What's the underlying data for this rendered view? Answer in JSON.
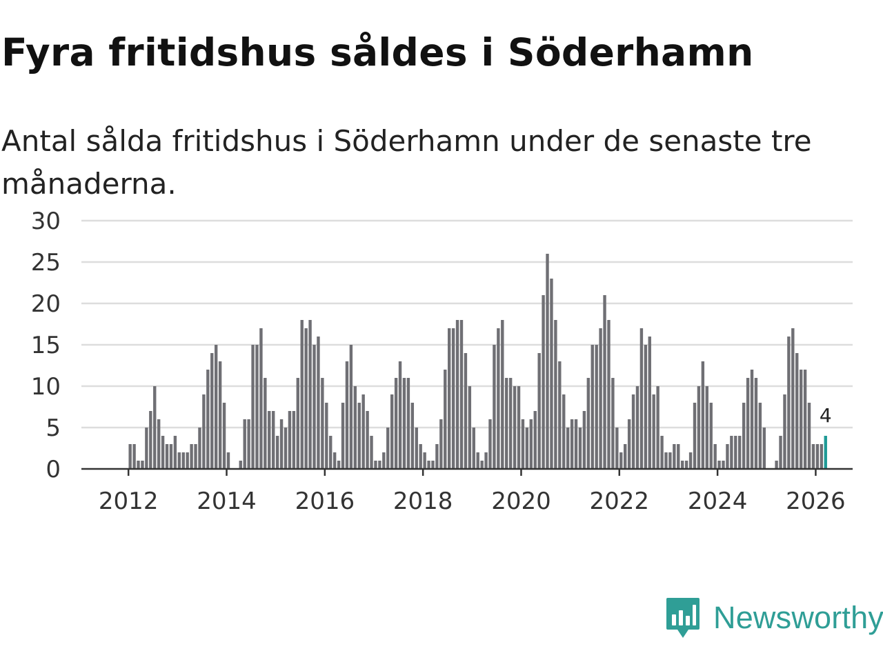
{
  "header": {
    "title": "Fyra fritidshus såldes i Söderhamn",
    "subtitle": "Antal sålda fritidshus i Söderhamn under de senaste tre månaderna."
  },
  "brand": {
    "name": "Newsworthy",
    "color": "#2f9e96"
  },
  "colors": {
    "bar": "#6f6f74",
    "highlight": "#1f9a96",
    "grid": "#dddddd",
    "axis": "#333333"
  },
  "chart_data": {
    "type": "bar",
    "title": "Fyra fritidshus såldes i Söderhamn",
    "subtitle": "Antal sålda fritidshus i Söderhamn under de senaste tre månaderna.",
    "xlabel": "",
    "ylabel": "",
    "ylim": [
      0,
      30
    ],
    "yticks": [
      "0",
      "5",
      "10",
      "15",
      "20",
      "25",
      "30"
    ],
    "xticks": [
      "2012",
      "2014",
      "2016",
      "2018",
      "2020",
      "2022",
      "2024",
      "2026"
    ],
    "grid": true,
    "start": "2011-01",
    "frequency": "monthly",
    "values": [
      0,
      0,
      0,
      0,
      0,
      0,
      0,
      0,
      0,
      0,
      0,
      0,
      3,
      3,
      1,
      1,
      5,
      7,
      10,
      6,
      4,
      3,
      3,
      4,
      2,
      2,
      2,
      3,
      3,
      5,
      9,
      12,
      14,
      15,
      13,
      8,
      2,
      0,
      0,
      1,
      6,
      6,
      15,
      15,
      17,
      11,
      7,
      7,
      4,
      6,
      5,
      7,
      7,
      11,
      18,
      17,
      18,
      15,
      16,
      11,
      8,
      4,
      2,
      1,
      8,
      13,
      15,
      10,
      8,
      9,
      7,
      4,
      1,
      1,
      2,
      5,
      9,
      11,
      13,
      11,
      11,
      8,
      5,
      3,
      2,
      1,
      1,
      3,
      6,
      12,
      17,
      17,
      18,
      18,
      14,
      10,
      5,
      2,
      1,
      2,
      6,
      15,
      17,
      18,
      11,
      11,
      10,
      10,
      6,
      5,
      6,
      7,
      14,
      21,
      26,
      23,
      18,
      13,
      9,
      5,
      6,
      6,
      5,
      7,
      11,
      15,
      15,
      17,
      21,
      18,
      11,
      5,
      2,
      3,
      6,
      9,
      10,
      17,
      15,
      16,
      9,
      10,
      4,
      2,
      2,
      3,
      3,
      1,
      1,
      2,
      8,
      10,
      13,
      10,
      8,
      3,
      1,
      1,
      3,
      4,
      4,
      4,
      8,
      11,
      12,
      11,
      8,
      5,
      0,
      0,
      1,
      4,
      9,
      16,
      17,
      14,
      12,
      12,
      8,
      3,
      3,
      3,
      4
    ],
    "highlight": {
      "label": "4",
      "value": 4,
      "period": "2026-03"
    }
  }
}
